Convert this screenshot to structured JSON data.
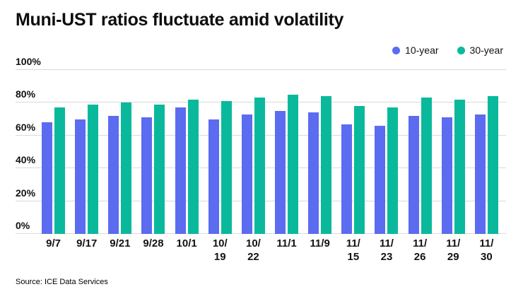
{
  "title": "Muni-UST ratios fluctuate amid volatility",
  "source": "Source: ICE Data Services",
  "chart_data": {
    "type": "bar",
    "title": "Muni-UST ratios fluctuate amid volatility",
    "categories": [
      "9/7",
      "9/17",
      "9/21",
      "9/28",
      "10/1",
      "10/19",
      "10/22",
      "11/1",
      "11/9",
      "11/15",
      "11/23",
      "11/26",
      "11/29",
      "11/30"
    ],
    "series": [
      {
        "name": "10-year",
        "color": "#5b6cf0",
        "values": [
          68,
          70,
          72,
          71,
          77,
          70,
          73,
          75,
          74,
          67,
          66,
          72,
          71,
          73
        ]
      },
      {
        "name": "30-year",
        "color": "#0ab99c",
        "values": [
          77,
          79,
          80,
          79,
          82,
          81,
          83,
          85,
          84,
          78,
          77,
          83,
          82,
          84
        ]
      }
    ],
    "yticks": [
      0,
      20,
      40,
      60,
      80,
      100
    ],
    "ytick_suffix": "%",
    "ylim": [
      0,
      100
    ],
    "grid": true,
    "legend_position": "top-right",
    "xlabel": "",
    "ylabel": ""
  }
}
